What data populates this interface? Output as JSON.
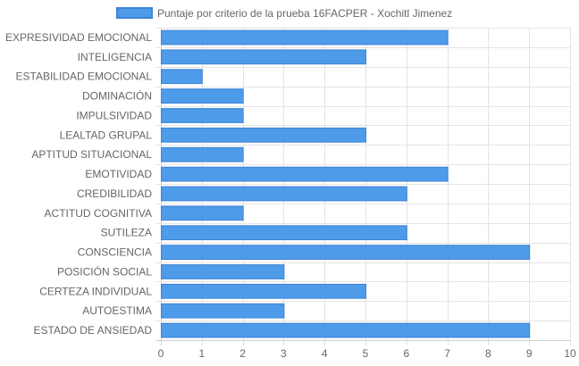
{
  "chart_data": {
    "type": "bar",
    "orientation": "horizontal",
    "legend": {
      "label": "Puntaje por criterio de la prueba 16FACPER - Xochitl Jimenez",
      "position": "top"
    },
    "categories": [
      "EXPRESIVIDAD EMOCIONAL",
      "INTELIGENCIA",
      "ESTABILIDAD EMOCIONAL",
      "DOMINACIÓN",
      "IMPULSIVIDAD",
      "LEALTAD GRUPAL",
      "APTITUD SITUACIONAL",
      "EMOTIVIDAD",
      "CREDIBILIDAD",
      "ACTITUD COGNITIVA",
      "SUTILEZA",
      "CONSCIENCIA",
      "POSICIÓN SOCIAL",
      "CERTEZA INDIVIDUAL",
      "AUTOESTIMA",
      "ESTADO DE ANSIEDAD"
    ],
    "series": [
      {
        "name": "Puntaje por criterio de la prueba 16FACPER - Xochitl Jimenez",
        "values": [
          7,
          5,
          1,
          2,
          2,
          5,
          2,
          7,
          6,
          2,
          6,
          9,
          3,
          5,
          3,
          9
        ]
      }
    ],
    "xlim": [
      0,
      10
    ],
    "x_ticks": [
      "0",
      "1",
      "2",
      "3",
      "4",
      "5",
      "6",
      "7",
      "8",
      "9",
      "10"
    ],
    "grid": true,
    "colors": {
      "bar_fill": "#4d9be9",
      "bar_stroke": "#3f83d8",
      "grid": "#e4e4e4",
      "axis": "#cfcfcf",
      "text": "#666666"
    }
  }
}
